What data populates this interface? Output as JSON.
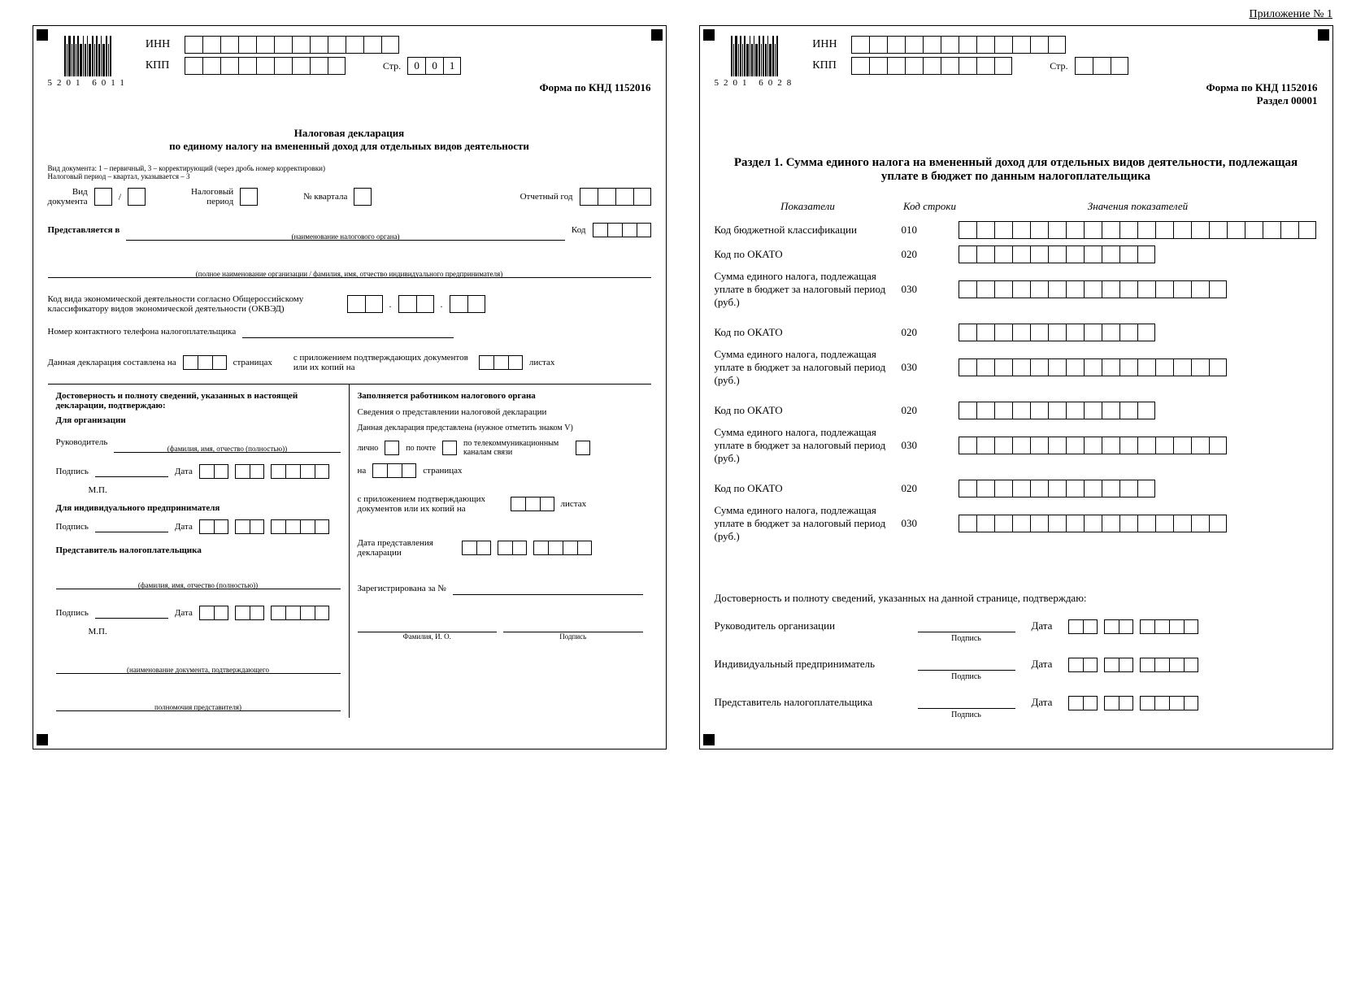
{
  "attachmentLabel": "Приложение № 1",
  "page1": {
    "barcodeNumber": "5201 6011",
    "innLabel": "ИНН",
    "kppLabel": "КПП",
    "pageLabel": "Стр.",
    "pageDigits": [
      "0",
      "0",
      "1"
    ],
    "formCode": "Форма по КНД  1152016",
    "title1": "Налоговая декларация",
    "title2": "по единому налогу на вмененный доход для отдельных видов деятельности",
    "hintDoc": "Вид документа: 1 – первичный, 3 – корректирующий (через дробь номер корректировки)",
    "hintPeriod": "Налоговый период – квартал, указывается – 3",
    "docTypeLabel": "Вид\nдокумента",
    "taxPeriodLabel": "Налоговый\nпериод",
    "quarterLabel": "№ квартала",
    "reportYearLabel": "Отчетный год",
    "submittedTo": "Представляется в",
    "submittedToCaption": "(наименование налогового органа)",
    "codeLabel": "Код",
    "fullNameCaption": "(полное наименование организации / фамилия, имя, отчество индивидуального предпринимателя)",
    "okvedLabel": "Код вида экономической деятельности согласно Общероссийскому классификатору видов экономической деятельности (ОКВЭД)",
    "phoneLabel": "Номер контактного телефона налогоплательщика",
    "pagesLabel1": "Данная декларация составлена на",
    "pagesLabel2": "страницах",
    "attachLabel1": "с приложением подтверждающих документов или их копий на",
    "attachLabel2": "листах",
    "left": {
      "confirmHeader": "Достоверность и полноту сведений, указанных в настоящей декларации, подтверждаю:",
      "forOrg": "Для организации",
      "head": "Руководитель",
      "headCaption": "(фамилия, имя, отчество (полностью))",
      "sign": "Подпись",
      "date": "Дата",
      "mp": "М.П.",
      "forIp": "Для индивидуального предпринимателя",
      "rep": "Представитель налогоплательщика",
      "repCaption": "(фамилия, имя, отчество (полностью))",
      "docCaption1": "(наименование документа, подтверждающего",
      "docCaption2": "полномочия представителя)"
    },
    "right": {
      "header": "Заполняется работником налогового органа",
      "info": "Сведения о представлении налоговой декларации",
      "presented": "Данная декларация представлена (нужное отметить знаком V)",
      "inPerson": "лично",
      "byMail": "по почте",
      "byTele": "по телекоммуникационным каналам связи",
      "on": "на",
      "pages": "страницах",
      "attach": "с приложением подтверждающих документов или их копий на",
      "sheets": "листах",
      "dateLabel": "Дата представления декларации",
      "regLabel": "Зарегистрирована за №",
      "fioCaption": "Фамилия, И. О.",
      "signCaption": "Подпись"
    }
  },
  "page2": {
    "barcodeNumber": "5201 6028",
    "innLabel": "ИНН",
    "kppLabel": "КПП",
    "pageLabel": "Стр.",
    "formCode": "Форма по КНД 1152016",
    "sectionCode": "Раздел  00001",
    "sectionTitle": "Раздел 1. Сумма единого налога на вмененный доход для отдельных видов деятельности, подлежащая уплате в бюджет по данным налогоплательщика",
    "colIndicators": "Показатели",
    "colCode": "Код строки",
    "colValues": "Значения показателей",
    "rows": [
      {
        "label": "Код бюджетной классификации",
        "code": "010",
        "cells": 20
      },
      {
        "label": "Код по ОКАТО",
        "code": "020",
        "cells": 11
      },
      {
        "label": "Сумма единого налога, подлежащая уплате в бюджет за налоговый период (руб.)",
        "code": "030",
        "cells": 15
      },
      {
        "label": "Код по ОКАТО",
        "code": "020",
        "cells": 11
      },
      {
        "label": "Сумма единого налога, подлежащая уплате в бюджет за налоговый период (руб.)",
        "code": "030",
        "cells": 15
      },
      {
        "label": "Код по ОКАТО",
        "code": "020",
        "cells": 11
      },
      {
        "label": "Сумма единого налога, подлежащая уплате в бюджет за налоговый период (руб.)",
        "code": "030",
        "cells": 15
      },
      {
        "label": "Код по ОКАТО",
        "code": "020",
        "cells": 11
      },
      {
        "label": "Сумма единого налога, подлежащая уплате в бюджет за налоговый период (руб.)",
        "code": "030",
        "cells": 15
      }
    ],
    "confirm": {
      "header": "Достоверность и полноту сведений, указанных на данной странице, подтверждаю:",
      "roles": [
        "Руководитель организации",
        "Индивидуальный предприниматель",
        "Представитель налогоплательщика"
      ],
      "sign": "Подпись",
      "date": "Дата"
    }
  }
}
